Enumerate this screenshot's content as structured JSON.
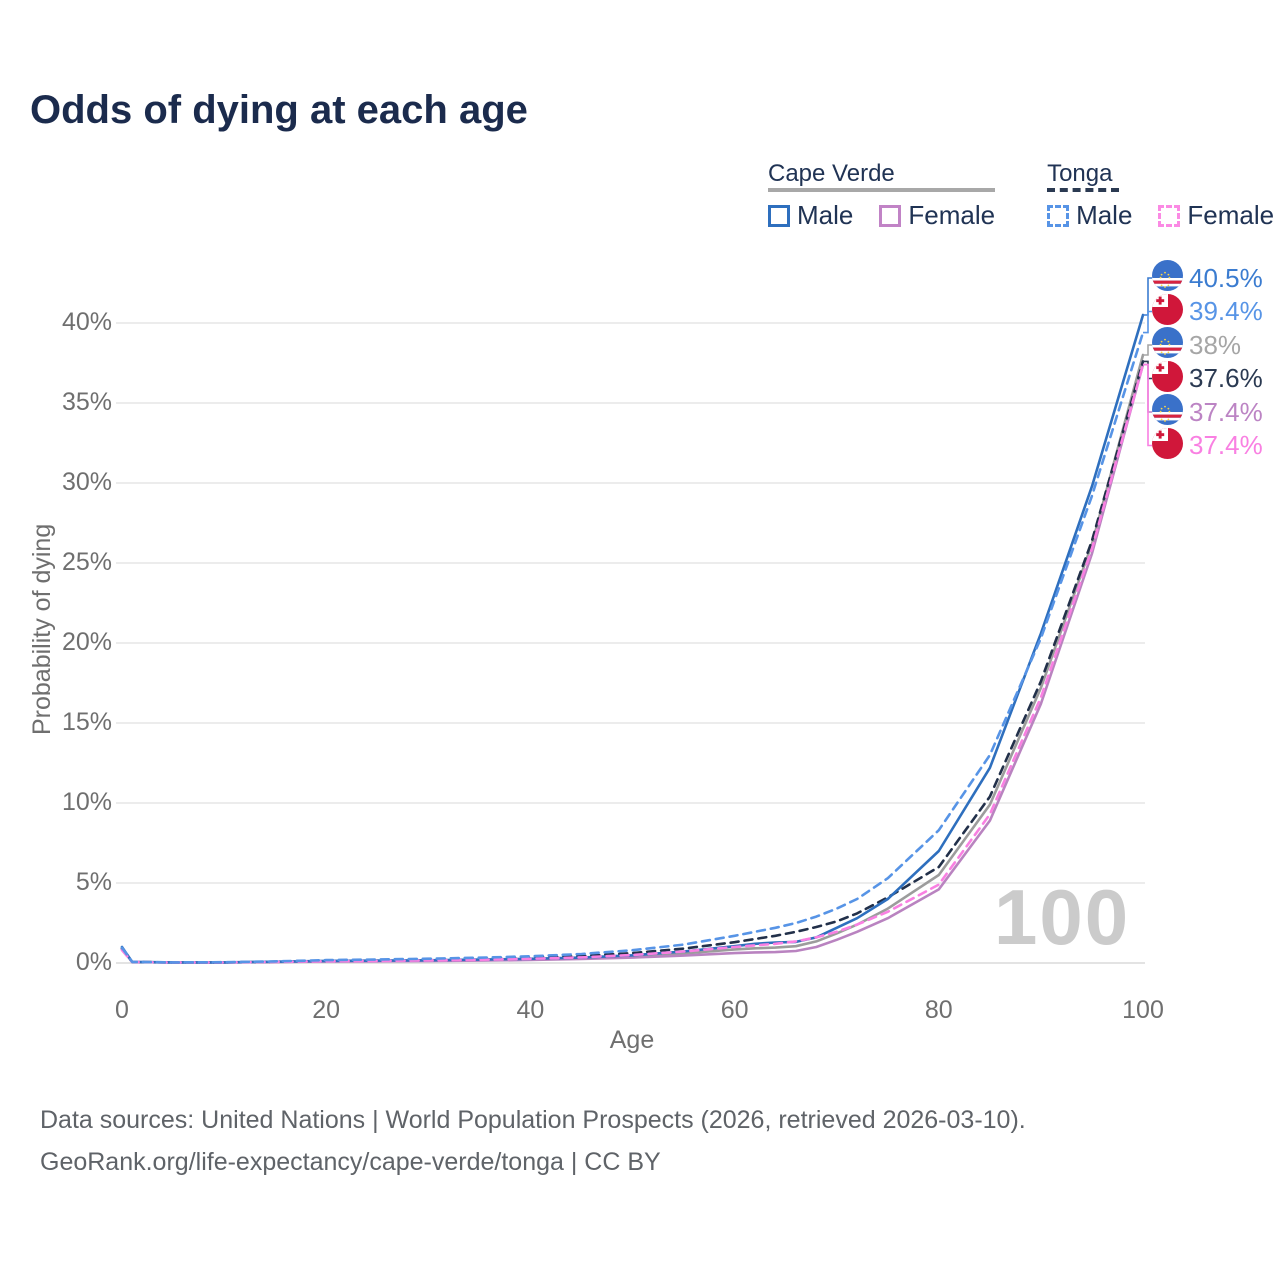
{
  "title": "Odds of dying at each age",
  "legend": {
    "groups": [
      {
        "name": "Cape Verde",
        "style": "solid",
        "items": [
          {
            "label": "Male",
            "color": "#2e6fbe"
          },
          {
            "label": "Female",
            "color": "#c183c6"
          }
        ]
      },
      {
        "name": "Tonga",
        "style": "dashed",
        "items": [
          {
            "label": "Male",
            "color": "#5794e6"
          },
          {
            "label": "Female",
            "color": "#fb8ae4"
          }
        ]
      }
    ]
  },
  "axes": {
    "y_title": "Probability of dying",
    "x_title": "Age",
    "y_ticks": [
      "0%",
      "5%",
      "10%",
      "15%",
      "20%",
      "25%",
      "30%",
      "35%",
      "40%"
    ],
    "x_ticks": [
      "0",
      "20",
      "40",
      "60",
      "80",
      "100"
    ]
  },
  "watermark": "100",
  "end_labels": [
    {
      "flag": "cape-verde",
      "value": "40.5%",
      "color": "#3b7cd0",
      "pct": 40.5
    },
    {
      "flag": "tonga",
      "value": "39.4%",
      "color": "#5794e6",
      "pct": 39.4
    },
    {
      "flag": "cape-verde",
      "value": "38%",
      "color": "#a6a6a6",
      "pct": 38.0
    },
    {
      "flag": "tonga",
      "value": "37.6%",
      "color": "#2b3a52",
      "pct": 37.6
    },
    {
      "flag": "cape-verde",
      "value": "37.4%",
      "color": "#bc84c4",
      "pct": 37.4
    },
    {
      "flag": "tonga",
      "value": "37.4%",
      "color": "#f980e2",
      "pct": 37.4
    }
  ],
  "footer": {
    "line1": "Data sources: United Nations | World Population Prospects (2026, retrieved 2026-03-10).",
    "line2": "GeoRank.org/life-expectancy/cape-verde/tonga | CC BY"
  },
  "chart_data": {
    "type": "line",
    "title": "Odds of dying at each age",
    "xlabel": "Age",
    "ylabel": "Probability of dying",
    "x_range": [
      0,
      100
    ],
    "y_range_pct": [
      0,
      42
    ],
    "grid": "horizontal",
    "legend_position": "top-right",
    "x": [
      0,
      1,
      5,
      10,
      15,
      20,
      25,
      30,
      35,
      40,
      45,
      50,
      55,
      60,
      62,
      64,
      66,
      68,
      70,
      72,
      75,
      80,
      85,
      90,
      95,
      100
    ],
    "series": [
      {
        "name": "Cape Verde combined",
        "country": "Cape Verde",
        "sex": "combined",
        "style": "solid",
        "color": "#9c9c9c",
        "values": [
          0.93,
          0.06,
          0.04,
          0.04,
          0.07,
          0.11,
          0.13,
          0.15,
          0.18,
          0.23,
          0.3,
          0.42,
          0.6,
          0.85,
          0.92,
          0.96,
          1.05,
          1.35,
          1.85,
          2.4,
          3.4,
          5.5,
          9.9,
          17.2,
          26.2,
          38.0
        ]
      },
      {
        "name": "Cape Verde Female",
        "country": "Cape Verde",
        "sex": "female",
        "style": "solid",
        "color": "#b983c0",
        "values": [
          0.85,
          0.06,
          0.03,
          0.03,
          0.06,
          0.09,
          0.1,
          0.12,
          0.15,
          0.19,
          0.25,
          0.34,
          0.46,
          0.62,
          0.66,
          0.68,
          0.75,
          1.0,
          1.45,
          1.95,
          2.8,
          4.6,
          8.9,
          16.2,
          25.6,
          37.4
        ]
      },
      {
        "name": "Tonga combined",
        "country": "Tonga",
        "sex": "combined",
        "style": "dashed",
        "color": "#22304a",
        "values": [
          0.9,
          0.06,
          0.04,
          0.04,
          0.08,
          0.14,
          0.17,
          0.2,
          0.25,
          0.32,
          0.43,
          0.62,
          0.9,
          1.3,
          1.5,
          1.7,
          1.95,
          2.25,
          2.6,
          3.1,
          4.1,
          6.0,
          10.4,
          17.6,
          26.4,
          37.6
        ]
      },
      {
        "name": "Cape Verde Male",
        "country": "Cape Verde",
        "sex": "male",
        "style": "solid",
        "color": "#2e6fbe",
        "values": [
          1.0,
          0.07,
          0.04,
          0.04,
          0.08,
          0.13,
          0.15,
          0.17,
          0.21,
          0.26,
          0.34,
          0.48,
          0.72,
          1.05,
          1.2,
          1.28,
          1.32,
          1.6,
          2.2,
          2.8,
          4.0,
          7.0,
          12.2,
          20.6,
          29.8,
          40.5
        ]
      },
      {
        "name": "Tonga Female",
        "country": "Tonga",
        "sex": "female",
        "style": "dashed",
        "color": "#f980e2",
        "values": [
          0.8,
          0.06,
          0.03,
          0.04,
          0.07,
          0.11,
          0.13,
          0.16,
          0.2,
          0.26,
          0.35,
          0.5,
          0.72,
          1.0,
          1.1,
          1.2,
          1.35,
          1.6,
          1.95,
          2.4,
          3.2,
          4.9,
          9.3,
          16.6,
          25.9,
          37.4
        ]
      },
      {
        "name": "Tonga Male",
        "country": "Tonga",
        "sex": "male",
        "style": "dashed",
        "color": "#5794e6",
        "values": [
          0.95,
          0.07,
          0.04,
          0.05,
          0.1,
          0.18,
          0.22,
          0.27,
          0.33,
          0.42,
          0.56,
          0.8,
          1.15,
          1.7,
          1.95,
          2.2,
          2.5,
          2.9,
          3.4,
          4.0,
          5.3,
          8.3,
          13.0,
          20.3,
          29.2,
          39.4
        ]
      }
    ]
  }
}
